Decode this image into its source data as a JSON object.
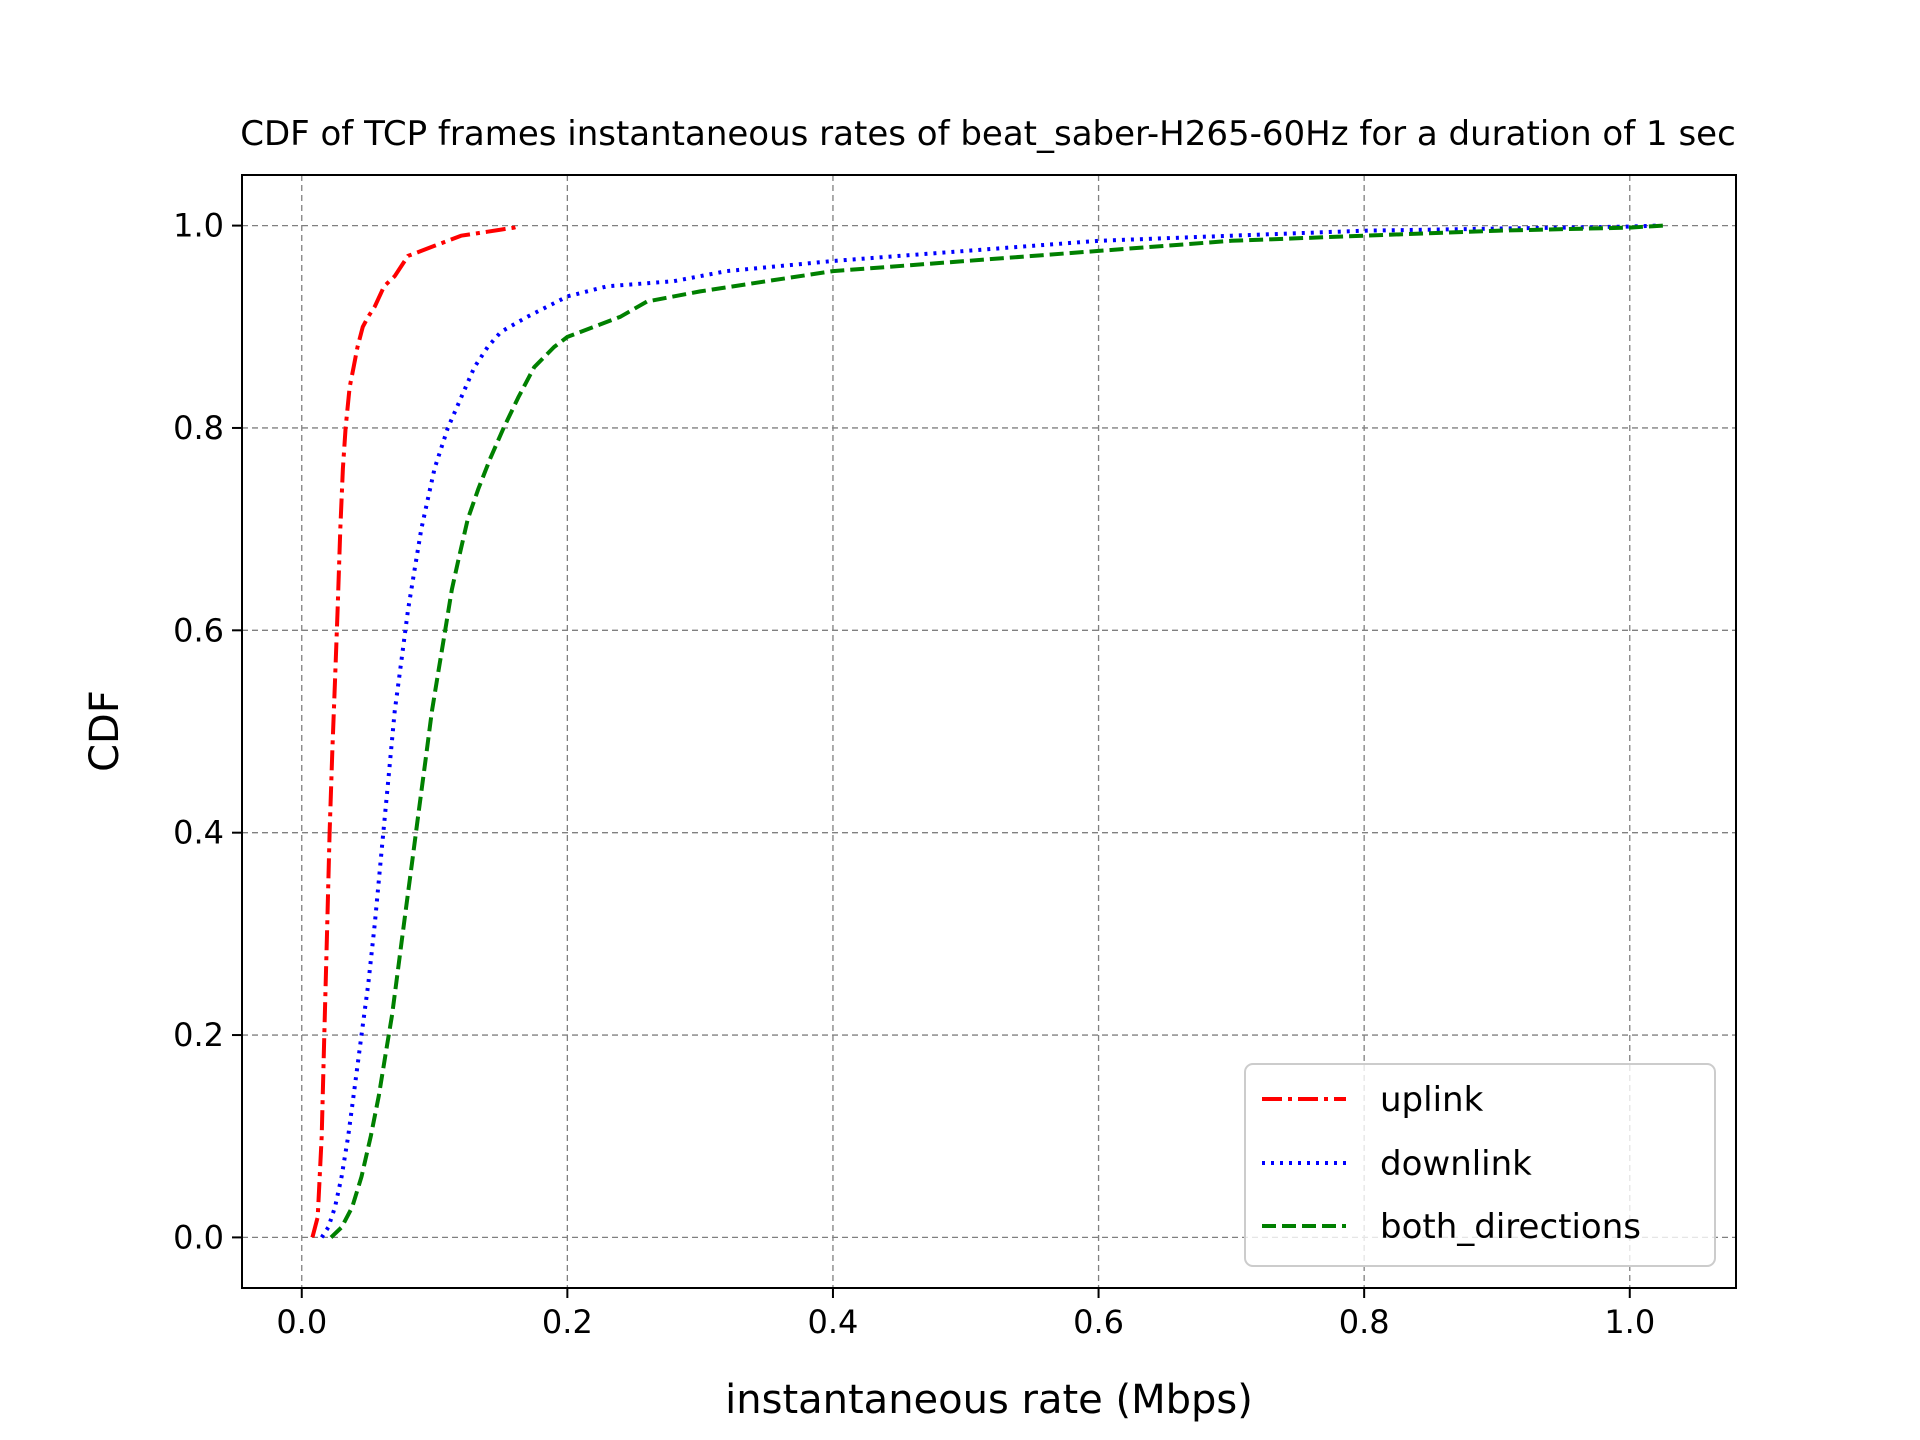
{
  "chart_data": {
    "type": "line",
    "title": "CDF of TCP frames instantaneous rates of beat_saber-H265-60Hz for a duration of 1 sec",
    "xlabel": "instantaneous rate (Mbps)",
    "ylabel": "CDF",
    "xlim": [
      -0.045,
      1.08
    ],
    "ylim": [
      -0.05,
      1.05
    ],
    "xticks": [
      0.0,
      0.2,
      0.4,
      0.6,
      0.8,
      1.0
    ],
    "xtick_labels": [
      "0.0",
      "0.2",
      "0.4",
      "0.6",
      "0.8",
      "1.0"
    ],
    "yticks": [
      0.0,
      0.2,
      0.4,
      0.6,
      0.8,
      1.0
    ],
    "ytick_labels": [
      "0.0",
      "0.2",
      "0.4",
      "0.6",
      "0.8",
      "1.0"
    ],
    "grid": true,
    "legend_position": "lower-right",
    "series": [
      {
        "name": "uplink",
        "color": "#ff0000",
        "style": "dashdot",
        "x": [
          0.008,
          0.012,
          0.015,
          0.017,
          0.019,
          0.021,
          0.023,
          0.025,
          0.027,
          0.029,
          0.031,
          0.033,
          0.036,
          0.039,
          0.042,
          0.046,
          0.05,
          0.055,
          0.062,
          0.07,
          0.08,
          0.09,
          0.1,
          0.11,
          0.12,
          0.13,
          0.14,
          0.15,
          0.16,
          0.165
        ],
        "y": [
          0.0,
          0.02,
          0.1,
          0.2,
          0.3,
          0.4,
          0.48,
          0.55,
          0.62,
          0.7,
          0.76,
          0.8,
          0.84,
          0.86,
          0.88,
          0.9,
          0.91,
          0.92,
          0.94,
          0.95,
          0.97,
          0.975,
          0.98,
          0.985,
          0.99,
          0.992,
          0.994,
          0.996,
          0.998,
          1.0
        ]
      },
      {
        "name": "downlink",
        "color": "#0000ff",
        "style": "dotted",
        "x": [
          0.015,
          0.02,
          0.025,
          0.03,
          0.035,
          0.04,
          0.045,
          0.05,
          0.055,
          0.06,
          0.065,
          0.07,
          0.075,
          0.08,
          0.085,
          0.09,
          0.095,
          0.1,
          0.105,
          0.11,
          0.12,
          0.13,
          0.14,
          0.15,
          0.17,
          0.2,
          0.23,
          0.28,
          0.32,
          0.4,
          0.45,
          0.5,
          0.6,
          0.7,
          0.8,
          0.9,
          1.0,
          1.02
        ],
        "y": [
          0.0,
          0.01,
          0.03,
          0.06,
          0.1,
          0.15,
          0.2,
          0.25,
          0.31,
          0.38,
          0.45,
          0.52,
          0.57,
          0.62,
          0.66,
          0.7,
          0.73,
          0.76,
          0.78,
          0.8,
          0.83,
          0.86,
          0.88,
          0.895,
          0.91,
          0.93,
          0.94,
          0.945,
          0.955,
          0.965,
          0.97,
          0.975,
          0.985,
          0.99,
          0.995,
          0.997,
          0.999,
          1.0
        ]
      },
      {
        "name": "both_directions",
        "color": "#008000",
        "style": "dashed",
        "x": [
          0.022,
          0.03,
          0.038,
          0.045,
          0.052,
          0.058,
          0.063,
          0.068,
          0.073,
          0.078,
          0.083,
          0.088,
          0.093,
          0.098,
          0.103,
          0.108,
          0.113,
          0.118,
          0.125,
          0.133,
          0.142,
          0.152,
          0.163,
          0.175,
          0.19,
          0.2,
          0.22,
          0.24,
          0.26,
          0.3,
          0.35,
          0.4,
          0.5,
          0.6,
          0.7,
          0.8,
          0.9,
          1.0,
          1.025
        ],
        "y": [
          0.0,
          0.01,
          0.03,
          0.06,
          0.1,
          0.14,
          0.18,
          0.22,
          0.27,
          0.32,
          0.37,
          0.42,
          0.47,
          0.52,
          0.56,
          0.6,
          0.64,
          0.67,
          0.71,
          0.74,
          0.77,
          0.8,
          0.83,
          0.86,
          0.88,
          0.89,
          0.9,
          0.91,
          0.925,
          0.935,
          0.945,
          0.955,
          0.965,
          0.975,
          0.985,
          0.99,
          0.995,
          0.998,
          1.0
        ]
      }
    ]
  }
}
